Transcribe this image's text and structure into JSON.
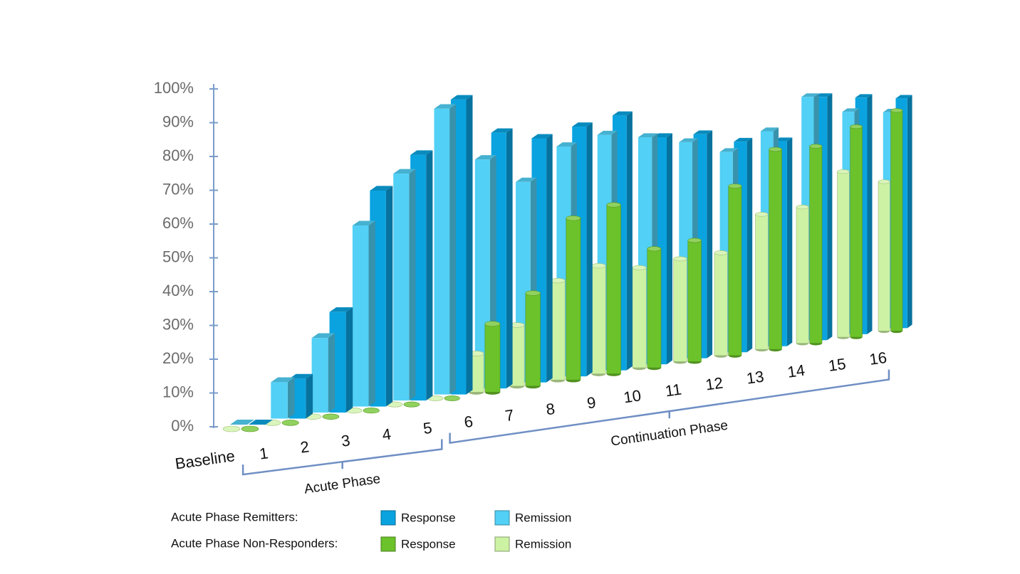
{
  "chart_data": {
    "type": "bar3d",
    "categories": [
      "Baseline",
      "1",
      "2",
      "3",
      "4",
      "5",
      "6",
      "7",
      "8",
      "9",
      "10",
      "11",
      "12",
      "13",
      "14",
      "15",
      "16"
    ],
    "series": [
      {
        "name": "Response",
        "group": 0,
        "shape": "box",
        "color": "#0aa3e0",
        "values": [
          0,
          12,
          31,
          68,
          79,
          97,
          86,
          84,
          88,
          92,
          84,
          85,
          82,
          82,
          100,
          100,
          100
        ]
      },
      {
        "name": "Remission",
        "group": 0,
        "shape": "box",
        "color": "#52d0f5",
        "values": [
          0,
          11,
          23,
          57,
          73,
          94,
          77,
          69,
          81,
          85,
          84,
          82,
          78,
          86,
          100,
          94,
          94
        ]
      },
      {
        "name": "Response",
        "group": 1,
        "shape": "cylinder",
        "color": "#6cc22a",
        "values": [
          0,
          0,
          0,
          0,
          0,
          0,
          23,
          32,
          57,
          61,
          44,
          46,
          66,
          80,
          81,
          89,
          96
        ]
      },
      {
        "name": "Remission",
        "group": 1,
        "shape": "cylinder",
        "color": "#cdf2a4",
        "values": [
          0,
          0,
          0,
          0,
          0,
          0,
          13,
          21,
          35,
          39,
          37,
          39,
          40,
          54,
          56,
          70,
          65
        ]
      }
    ],
    "legend_groups": [
      "Acute Phase Remitters:",
      "Acute Phase Non-Responders:"
    ],
    "phases": [
      {
        "label": "Acute Phase",
        "from": 1,
        "to": 5
      },
      {
        "label": "Continuation Phase",
        "from": 6,
        "to": 16
      }
    ],
    "ylim": [
      0,
      100
    ],
    "yticks": [
      {
        "value": 0,
        "label": "0%"
      },
      {
        "value": 10,
        "label": "10%"
      },
      {
        "value": 20,
        "label": "20%"
      },
      {
        "value": 30,
        "label": "30%"
      },
      {
        "value": 40,
        "label": "40%"
      },
      {
        "value": 50,
        "label": "50%"
      },
      {
        "value": 60,
        "label": "60%"
      },
      {
        "value": 70,
        "label": "70%"
      },
      {
        "value": 80,
        "label": "80%"
      },
      {
        "value": 90,
        "label": "90%"
      },
      {
        "value": 100,
        "label": "100%"
      }
    ]
  }
}
